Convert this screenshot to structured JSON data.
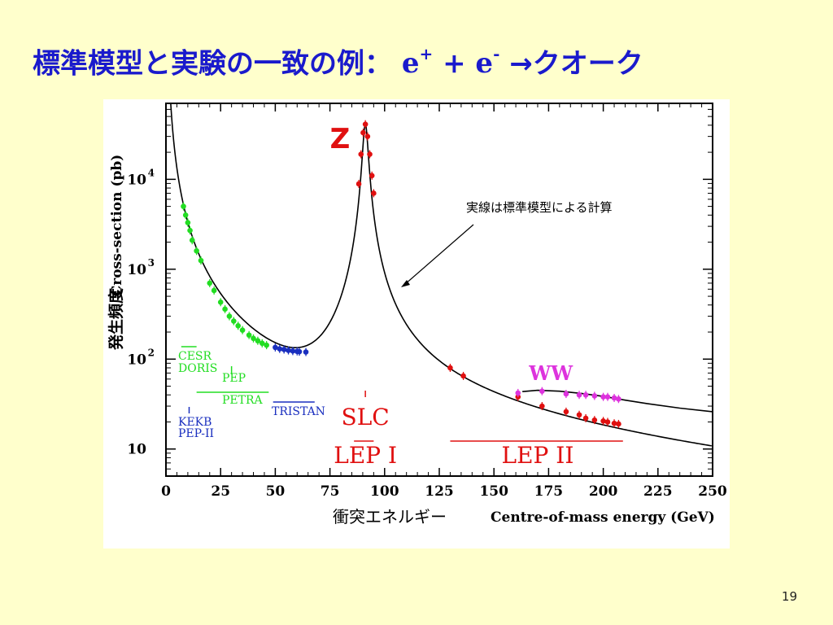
{
  "title": {
    "main": "標準模型と実験の一致の例：",
    "reaction_e1": "e",
    "sup1": "+",
    "plus": " + ",
    "reaction_e2": "e",
    "sup2": "-",
    "arrow_product": " →クオーク"
  },
  "page_number": "19",
  "chart_data": {
    "type": "scatter",
    "title": "",
    "xlabel_en": "Centre-of-mass energy (GeV)",
    "xlabel_ja": "衝突エネルギー",
    "ylabel_en": "Cross-section (pb)",
    "ylabel_ja": "発生頻度",
    "xlim": [
      0,
      250
    ],
    "ylim": [
      5,
      70000
    ],
    "yscale": "log",
    "x_ticks": [
      "0",
      "25",
      "50",
      "75",
      "100",
      "125",
      "150",
      "175",
      "200",
      "225",
      "250"
    ],
    "y_ticks": [
      {
        "value": 10,
        "base": "10",
        "exp": ""
      },
      {
        "value": 100,
        "base": "10",
        "exp": "2"
      },
      {
        "value": 1000,
        "base": "10",
        "exp": "3"
      },
      {
        "value": 10000,
        "base": "10",
        "exp": "4"
      }
    ],
    "curve_annotation": "実線は標準模型による計算",
    "peak_label": "Z",
    "ww_label": "WW",
    "experiments": {
      "green": [
        "CESR",
        "DORIS",
        "PEP",
        "PETRA"
      ],
      "blue": [
        "KEKB",
        "PEP-II",
        "TRISTAN"
      ],
      "slc": "SLC",
      "lep1": "LEP I",
      "lep2": "LEP II"
    },
    "colors": {
      "green": "#22dd22",
      "blue": "#1a2fbf",
      "red": "#e01010",
      "magenta": "#dd33dd",
      "curve": "#000000",
      "title": "#1a1acc"
    },
    "series": [
      {
        "name": "",
        "color": "#22dd22",
        "points": [
          [
            8,
            5000
          ],
          [
            9,
            4000
          ],
          [
            10,
            3300
          ],
          [
            11,
            2700
          ],
          [
            12,
            2100
          ],
          [
            14,
            1600
          ],
          [
            16,
            1250
          ],
          [
            20,
            700
          ],
          [
            22,
            580
          ],
          [
            25,
            430
          ],
          [
            27,
            360
          ],
          [
            29,
            300
          ],
          [
            31,
            265
          ],
          [
            33,
            235
          ],
          [
            35,
            210
          ],
          [
            38,
            185
          ],
          [
            40,
            170
          ],
          [
            42,
            160
          ],
          [
            44,
            150
          ],
          [
            46,
            143
          ]
        ]
      },
      {
        "name": "",
        "color": "#1a2fbf",
        "points": [
          [
            50,
            135
          ],
          [
            52,
            130
          ],
          [
            54,
            128
          ],
          [
            56,
            125
          ],
          [
            58,
            123
          ],
          [
            60,
            122
          ],
          [
            61,
            121
          ],
          [
            64,
            120
          ]
        ]
      },
      {
        "name": "",
        "color": "#e01010",
        "points": [
          [
            88.2,
            8900
          ],
          [
            89.2,
            19000
          ],
          [
            90.2,
            33000
          ],
          [
            91.2,
            41000
          ],
          [
            92.2,
            30000
          ],
          [
            93.2,
            19000
          ],
          [
            94.2,
            11000
          ],
          [
            95,
            7000
          ],
          [
            130,
            80
          ],
          [
            136,
            65
          ],
          [
            161,
            38
          ],
          [
            172,
            30
          ],
          [
            183,
            26
          ],
          [
            189,
            24
          ],
          [
            192,
            22
          ],
          [
            196,
            21
          ],
          [
            200,
            20.5
          ],
          [
            202,
            20
          ],
          [
            205,
            19.3
          ],
          [
            207,
            19
          ]
        ]
      },
      {
        "name": "",
        "color": "#dd33dd",
        "points": [
          [
            161,
            42
          ],
          [
            172,
            44
          ],
          [
            183,
            41
          ],
          [
            189,
            40
          ],
          [
            192,
            40
          ],
          [
            196,
            39
          ],
          [
            200,
            38
          ],
          [
            202,
            38
          ],
          [
            205,
            37
          ],
          [
            207,
            36
          ]
        ]
      }
    ]
  }
}
